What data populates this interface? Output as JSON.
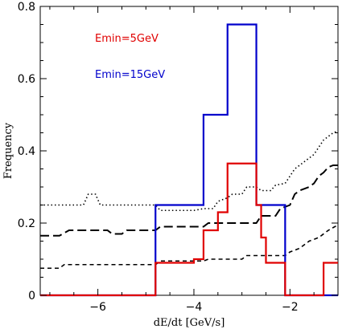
{
  "chart_data": {
    "type": "line",
    "xlabel": "dE/dt [GeV/s]",
    "ylabel": "Frequency",
    "xlim": [
      -7.2,
      -1.0
    ],
    "ylim": [
      0,
      0.8
    ],
    "x_ticks": [
      -6,
      -4,
      -2
    ],
    "y_ticks": [
      0,
      0.2,
      0.4,
      0.6,
      0.8
    ],
    "x_tick_labels": [
      "−6",
      "−4",
      "−2"
    ],
    "y_tick_labels": [
      "0",
      "0.2",
      "0.4",
      "0.6",
      "0.8"
    ],
    "legend_position": "top-left",
    "legend": [
      {
        "label": "Emin=5GeV",
        "color": "#e00000"
      },
      {
        "label": "Emin=15GeV",
        "color": "#0000cc"
      }
    ],
    "series": [
      {
        "color": "#0000cc",
        "style": "solid",
        "step": true,
        "points": [
          [
            -7.2,
            0
          ],
          [
            -4.8,
            0
          ],
          [
            -4.8,
            0.25
          ],
          [
            -3.8,
            0.25
          ],
          [
            -3.8,
            0.5
          ],
          [
            -3.3,
            0.5
          ],
          [
            -3.3,
            0.75
          ],
          [
            -2.7,
            0.75
          ],
          [
            -2.7,
            0.25
          ],
          [
            -2.1,
            0.25
          ],
          [
            -2.1,
            0
          ],
          [
            -1.0,
            0
          ]
        ]
      },
      {
        "color": "#e00000",
        "style": "solid",
        "step": true,
        "points": [
          [
            -7.2,
            0
          ],
          [
            -4.8,
            0
          ],
          [
            -4.8,
            0.09
          ],
          [
            -4.0,
            0.09
          ],
          [
            -4.0,
            0.1
          ],
          [
            -3.8,
            0.1
          ],
          [
            -3.8,
            0.18
          ],
          [
            -3.5,
            0.18
          ],
          [
            -3.5,
            0.23
          ],
          [
            -3.3,
            0.23
          ],
          [
            -3.3,
            0.365
          ],
          [
            -2.7,
            0.365
          ],
          [
            -2.7,
            0.25
          ],
          [
            -2.6,
            0.25
          ],
          [
            -2.6,
            0.16
          ],
          [
            -2.5,
            0.16
          ],
          [
            -2.5,
            0.09
          ],
          [
            -2.1,
            0.09
          ],
          [
            -2.1,
            0
          ],
          [
            -1.3,
            0
          ],
          [
            -1.3,
            0.09
          ],
          [
            -1.0,
            0.09
          ]
        ]
      },
      {
        "color": "#000000",
        "style": "dotted",
        "step": false,
        "points": [
          [
            -7.2,
            0.25
          ],
          [
            -6.3,
            0.25
          ],
          [
            -6.2,
            0.28
          ],
          [
            -6.05,
            0.28
          ],
          [
            -5.95,
            0.25
          ],
          [
            -4.8,
            0.25
          ],
          [
            -4.7,
            0.235
          ],
          [
            -4.0,
            0.235
          ],
          [
            -3.8,
            0.24
          ],
          [
            -3.6,
            0.24
          ],
          [
            -3.5,
            0.26
          ],
          [
            -3.3,
            0.27
          ],
          [
            -3.2,
            0.28
          ],
          [
            -3.0,
            0.28
          ],
          [
            -2.9,
            0.3
          ],
          [
            -2.7,
            0.3
          ],
          [
            -2.6,
            0.29
          ],
          [
            -2.4,
            0.29
          ],
          [
            -2.3,
            0.305
          ],
          [
            -2.1,
            0.31
          ],
          [
            -2.0,
            0.33
          ],
          [
            -1.9,
            0.35
          ],
          [
            -1.8,
            0.36
          ],
          [
            -1.7,
            0.37
          ],
          [
            -1.6,
            0.38
          ],
          [
            -1.5,
            0.39
          ],
          [
            -1.4,
            0.41
          ],
          [
            -1.3,
            0.43
          ],
          [
            -1.2,
            0.44
          ],
          [
            -1.1,
            0.45
          ],
          [
            -1.0,
            0.455
          ]
        ]
      },
      {
        "color": "#000000",
        "style": "long-dash",
        "step": false,
        "points": [
          [
            -7.2,
            0.165
          ],
          [
            -6.8,
            0.165
          ],
          [
            -6.6,
            0.18
          ],
          [
            -5.8,
            0.18
          ],
          [
            -5.7,
            0.17
          ],
          [
            -5.5,
            0.17
          ],
          [
            -5.4,
            0.18
          ],
          [
            -4.8,
            0.18
          ],
          [
            -4.7,
            0.19
          ],
          [
            -3.8,
            0.19
          ],
          [
            -3.7,
            0.2
          ],
          [
            -2.7,
            0.2
          ],
          [
            -2.6,
            0.22
          ],
          [
            -2.3,
            0.22
          ],
          [
            -2.2,
            0.24
          ],
          [
            -2.0,
            0.25
          ],
          [
            -1.9,
            0.28
          ],
          [
            -1.8,
            0.29
          ],
          [
            -1.6,
            0.3
          ],
          [
            -1.5,
            0.31
          ],
          [
            -1.4,
            0.33
          ],
          [
            -1.3,
            0.34
          ],
          [
            -1.2,
            0.355
          ],
          [
            -1.1,
            0.36
          ],
          [
            -1.0,
            0.36
          ]
        ]
      },
      {
        "color": "#000000",
        "style": "short-dash",
        "step": false,
        "points": [
          [
            -7.2,
            0.075
          ],
          [
            -6.8,
            0.075
          ],
          [
            -6.7,
            0.085
          ],
          [
            -4.8,
            0.085
          ],
          [
            -4.7,
            0.095
          ],
          [
            -3.8,
            0.095
          ],
          [
            -3.7,
            0.1
          ],
          [
            -3.0,
            0.1
          ],
          [
            -2.9,
            0.11
          ],
          [
            -2.1,
            0.11
          ],
          [
            -2.0,
            0.12
          ],
          [
            -1.8,
            0.13
          ],
          [
            -1.6,
            0.15
          ],
          [
            -1.4,
            0.16
          ],
          [
            -1.2,
            0.18
          ],
          [
            -1.0,
            0.195
          ]
        ]
      }
    ]
  }
}
